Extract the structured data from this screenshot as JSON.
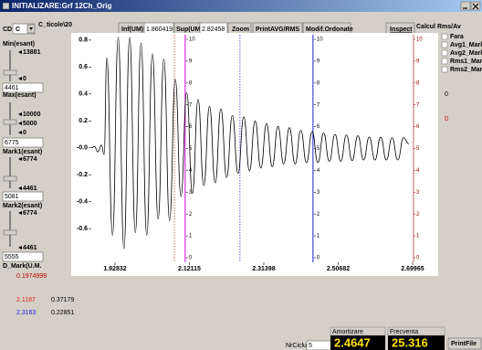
{
  "window": {
    "title": "INITIALIZARE:Grf 12Ch_Orig"
  },
  "toolbar": {
    "cd_label": "CD",
    "cd_value": "C",
    "path": "C_ticole\\20",
    "inf_label": "Inf(UM)",
    "inf_value": "1.860419",
    "sup_label": "Sup(UM)",
    "sup_value": "2.82458",
    "zoom": "Zoom",
    "print_avg": "PrintAVG/RMS",
    "modif": "Modif.Ordonate",
    "inspect": "Inspect",
    "calcul": "Calcul Rms/Av"
  },
  "left_panel": {
    "min_label": "Min(esant)",
    "min_top": "13881",
    "min_bottom": "0",
    "min_value": "4461",
    "max_label": "Max(esant)",
    "max_top": "10000",
    "max_mid": "5000",
    "max_bottom": "0",
    "max_value": "6775",
    "mark1_label": "Mark1(esant)",
    "mark1_top": "6774",
    "mark1_bottom": "4461",
    "mark1_value": "5081",
    "mark2_label": "Mark2(esant)",
    "mark2_top": "6774",
    "mark2_bottom": "4461",
    "mark2_value": "5555",
    "dmark_label": "D_Mark(U.M.",
    "dmark_value": "0.1974999",
    "row1": [
      "2.1187",
      "0.37179"
    ],
    "row2": [
      "2.3163",
      "0.22851"
    ]
  },
  "right_panel": {
    "options": [
      "Fara",
      "Avg1_Mark",
      "Avg2_Mark",
      "Rms1_Mark",
      "Rms2_Mark"
    ],
    "value1": "0",
    "value2": "0"
  },
  "chart": {
    "type": "line",
    "color": "#000000",
    "x": [
      1.867,
      1.875,
      1.884,
      1.893,
      1.9,
      1.907,
      1.9218,
      1.9366,
      1.9514,
      1.9662,
      1.981,
      1.9957,
      2.0105,
      2.0253,
      2.0401,
      2.0549,
      2.0697,
      2.0845,
      2.0993,
      2.1141,
      2.1289,
      2.1436,
      2.1584,
      2.1732,
      2.188,
      2.2028,
      2.2176,
      2.2324,
      2.2472,
      2.262,
      2.2768,
      2.2915,
      2.3063,
      2.3211,
      2.3359,
      2.3507,
      2.3655,
      2.3803,
      2.3951,
      2.4099,
      2.4247,
      2.4394,
      2.4542,
      2.469,
      2.4838,
      2.4986,
      2.5134,
      2.5282,
      2.543,
      2.5578,
      2.5726,
      2.5873,
      2.6021,
      2.6169,
      2.6317,
      2.6465,
      2.6613,
      2.6761,
      2.69
    ],
    "y": [
      0,
      0.01,
      -0.03,
      0.02,
      -0.05,
      0.67,
      -0.65,
      0.82,
      -0.75,
      0.82,
      -0.63,
      0.78,
      -0.65,
      0.7,
      -0.53,
      0.66,
      -0.54,
      0.51,
      -0.36,
      0.41,
      -0.34,
      0.36,
      -0.28,
      0.31,
      -0.26,
      0.29,
      -0.22,
      0.24,
      -0.19,
      0.23,
      -0.17,
      0.2,
      -0.15,
      0.18,
      -0.14,
      0.16,
      -0.12,
      0.15,
      -0.12,
      0.13,
      -0.11,
      0.12,
      -0.11,
      0.11,
      -0.1,
      0.1,
      -0.1,
      0.095,
      -0.095,
      0.09,
      -0.09,
      0.08,
      -0.09,
      0.08,
      -0.09,
      0.075,
      -0.09,
      0.075,
      0.03
    ],
    "xlim": [
      1.8668,
      2.7021
    ],
    "ylim": [
      -0.85,
      0.84
    ],
    "xticks": [
      1.92832,
      2.12115,
      2.31398,
      2.50682,
      2.69965
    ],
    "yticks": [
      0.8,
      0.6,
      0.4,
      0.2,
      {
        "value": 0,
        "label": "-0.0"
      },
      -0.2,
      -0.4,
      -0.6
    ],
    "scale_lim": [
      0,
      10
    ],
    "scale_ticks": [
      0,
      1,
      2,
      3,
      4,
      5,
      6,
      7,
      8,
      9,
      10
    ],
    "scale_color": "#a00000",
    "cursors": [
      {
        "x": 2.0821,
        "color": "#e03030",
        "style": "dotted"
      },
      {
        "x": 2.1102,
        "color": "#e000e0",
        "style": "solid"
      },
      {
        "x": 2.2522,
        "color": "#3030e0",
        "style": "dotted"
      },
      {
        "x": 2.4415,
        "color": "#2020d0",
        "style": "solid"
      }
    ]
  },
  "bottom": {
    "cycles_label": "NrCiclui",
    "cycles_value": "5",
    "damping_label": "Amortizare",
    "damping_value": "2.4647",
    "freq_label": "Frecventa",
    "freq_value": "25.316",
    "print_file": "PrintFile"
  }
}
